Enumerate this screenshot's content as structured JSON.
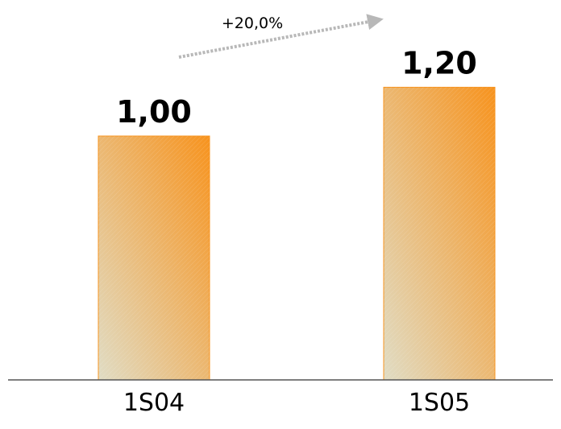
{
  "chart_data": {
    "type": "bar",
    "categories": [
      "1S04",
      "1S05"
    ],
    "values": [
      1.0,
      1.2
    ],
    "value_labels": [
      "1,00",
      "1,20"
    ],
    "annotation": "+20,0%",
    "title": "",
    "xlabel": "",
    "ylabel": "",
    "ylim": [
      0,
      1.2
    ],
    "grid": false,
    "legend": "none",
    "colors": {
      "bar_dark": "#f7931e",
      "bar_light": "#e0dcc4",
      "bar_border": "#f7931e",
      "axis": "#555555",
      "arrow": "#b8b8b8"
    }
  }
}
